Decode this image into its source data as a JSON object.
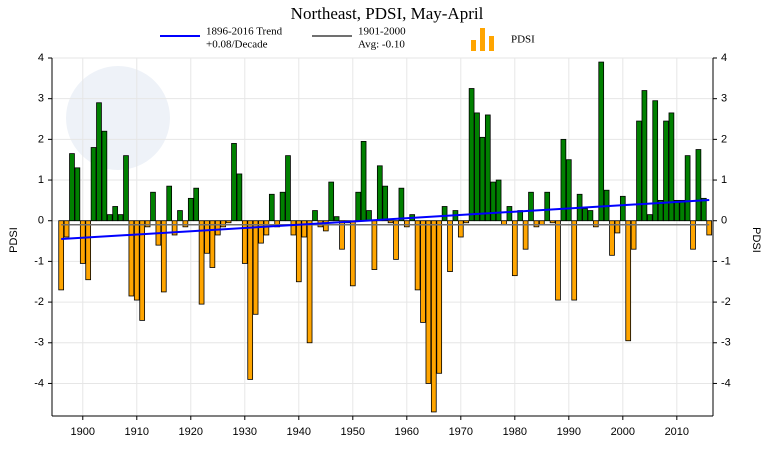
{
  "chart_data": {
    "type": "bar",
    "title": "Northeast, PDSI, May-April",
    "y_label": "PDSI",
    "y2_label": "PDSI",
    "trend_legend": [
      "1896-2016 Trend",
      "+0.08/Decade"
    ],
    "avg_legend": [
      "1901-2000",
      "Avg: -0.10"
    ],
    "bar_legend": "PDSI",
    "positive_color": "#008000",
    "negative_color": "#ffa500",
    "trend_color": "#0000ff",
    "avg_color": "#707070",
    "avg": -0.1,
    "trend": {
      "start": -0.45,
      "end": 0.51
    },
    "x": [
      1896,
      1897,
      1898,
      1899,
      1900,
      1901,
      1902,
      1903,
      1904,
      1905,
      1906,
      1907,
      1908,
      1909,
      1910,
      1911,
      1912,
      1913,
      1914,
      1915,
      1916,
      1917,
      1918,
      1919,
      1920,
      1921,
      1922,
      1923,
      1924,
      1925,
      1926,
      1927,
      1928,
      1929,
      1930,
      1931,
      1932,
      1933,
      1934,
      1935,
      1936,
      1937,
      1938,
      1939,
      1940,
      1941,
      1942,
      1943,
      1944,
      1945,
      1946,
      1947,
      1948,
      1949,
      1950,
      1951,
      1952,
      1953,
      1954,
      1955,
      1956,
      1957,
      1958,
      1959,
      1960,
      1961,
      1962,
      1963,
      1964,
      1965,
      1966,
      1967,
      1968,
      1969,
      1970,
      1971,
      1972,
      1973,
      1974,
      1975,
      1976,
      1977,
      1978,
      1979,
      1980,
      1981,
      1982,
      1983,
      1984,
      1985,
      1986,
      1987,
      1988,
      1989,
      1990,
      1991,
      1992,
      1993,
      1994,
      1995,
      1996,
      1997,
      1998,
      1999,
      2000,
      2001,
      2002,
      2003,
      2004,
      2005,
      2006,
      2007,
      2008,
      2009,
      2010,
      2011,
      2012,
      2013,
      2014,
      2015,
      2016
    ],
    "values": [
      -1.7,
      -0.4,
      1.65,
      1.3,
      -1.05,
      -1.45,
      1.8,
      2.9,
      2.2,
      0.15,
      0.35,
      0.15,
      1.6,
      -1.85,
      -1.95,
      -2.45,
      -0.15,
      0.7,
      -0.6,
      -1.75,
      0.85,
      -0.35,
      0.25,
      -0.15,
      0.55,
      0.8,
      -2.05,
      -0.8,
      -1.15,
      -0.35,
      -0.15,
      -0.05,
      1.9,
      1.15,
      -1.05,
      -3.9,
      -2.3,
      -0.55,
      -0.35,
      0.65,
      -0.15,
      0.7,
      1.6,
      -0.35,
      -1.5,
      -0.4,
      -3.0,
      0.25,
      -0.15,
      -0.25,
      0.95,
      0.1,
      -0.7,
      -0.05,
      -1.6,
      0.7,
      1.95,
      0.25,
      -1.2,
      1.35,
      0.85,
      -0.05,
      -0.95,
      0.8,
      -0.15,
      0.15,
      -1.7,
      -2.5,
      -4.0,
      -4.7,
      -3.75,
      0.35,
      -1.25,
      0.25,
      -0.4,
      -0.05,
      3.25,
      2.65,
      2.05,
      2.6,
      0.95,
      1.0,
      -0.1,
      0.35,
      -1.35,
      0.25,
      -0.7,
      0.7,
      -0.15,
      -0.1,
      0.7,
      -0.05,
      -1.95,
      2.0,
      1.5,
      -1.95,
      0.65,
      0.3,
      0.25,
      -0.15,
      3.9,
      0.75,
      -0.85,
      -0.3,
      0.6,
      -2.95,
      -0.7,
      2.45,
      3.2,
      0.15,
      2.95,
      0.5,
      2.45,
      2.65,
      0.5,
      0.5,
      1.6,
      -0.7,
      1.75,
      0.55,
      -0.35
    ],
    "xlim": [
      1894.3,
      2016.7
    ],
    "xticks": [
      1900,
      1910,
      1920,
      1930,
      1940,
      1950,
      1960,
      1970,
      1980,
      1990,
      2000,
      2010
    ],
    "ylim": [
      -4.8,
      4
    ],
    "yticks": [
      -4,
      -3,
      -2,
      -1,
      0,
      1,
      2,
      3,
      4
    ],
    "grid": true
  }
}
